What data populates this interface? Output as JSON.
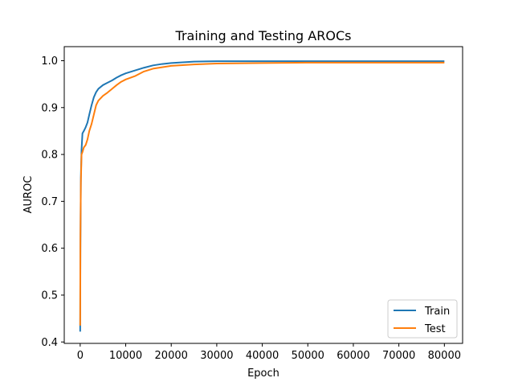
{
  "chart_data": {
    "type": "line",
    "title": "Training and Testing AROCs",
    "xlabel": "Epoch",
    "ylabel": "AUROC",
    "xlim": [
      -3500,
      84000
    ],
    "ylim": [
      0.397,
      1.03
    ],
    "xticks": [
      0,
      10000,
      20000,
      30000,
      40000,
      50000,
      60000,
      70000,
      80000
    ],
    "yticks": [
      0.4,
      0.5,
      0.6,
      0.7,
      0.8,
      0.9,
      1.0
    ],
    "xtick_labels": [
      "0",
      "10000",
      "20000",
      "30000",
      "40000",
      "50000",
      "60000",
      "70000",
      "80000"
    ],
    "ytick_labels": [
      "0.4",
      "0.5",
      "0.6",
      "0.7",
      "0.8",
      "0.9",
      "1.0"
    ],
    "grid": false,
    "legend_placement": "lower-right",
    "series": [
      {
        "name": "Train",
        "color": "#1f77b4",
        "x": [
          0,
          50,
          150,
          300,
          500,
          800,
          1200,
          1600,
          2000,
          2500,
          3000,
          3500,
          4000,
          5000,
          6000,
          7000,
          8000,
          9000,
          10000,
          12000,
          14000,
          16000,
          18000,
          20000,
          25000,
          30000,
          40000,
          50000,
          60000,
          70000,
          80000
        ],
        "y": [
          0.422,
          0.6,
          0.75,
          0.81,
          0.845,
          0.85,
          0.858,
          0.868,
          0.885,
          0.905,
          0.922,
          0.933,
          0.94,
          0.948,
          0.953,
          0.958,
          0.964,
          0.969,
          0.973,
          0.979,
          0.985,
          0.99,
          0.993,
          0.995,
          0.998,
          0.999,
          0.999,
          0.999,
          0.999,
          0.999,
          0.999
        ]
      },
      {
        "name": "Test",
        "color": "#ff7f0e",
        "x": [
          0,
          50,
          150,
          300,
          500,
          800,
          1200,
          1600,
          2000,
          2500,
          3000,
          3500,
          4000,
          5000,
          6000,
          7000,
          8000,
          9000,
          10000,
          12000,
          14000,
          16000,
          18000,
          20000,
          25000,
          30000,
          40000,
          50000,
          60000,
          70000,
          80000
        ],
        "y": [
          0.435,
          0.62,
          0.74,
          0.8,
          0.805,
          0.815,
          0.82,
          0.832,
          0.85,
          0.865,
          0.885,
          0.905,
          0.915,
          0.925,
          0.932,
          0.94,
          0.948,
          0.955,
          0.96,
          0.967,
          0.977,
          0.983,
          0.986,
          0.989,
          0.992,
          0.994,
          0.995,
          0.996,
          0.996,
          0.996,
          0.996
        ]
      }
    ]
  }
}
